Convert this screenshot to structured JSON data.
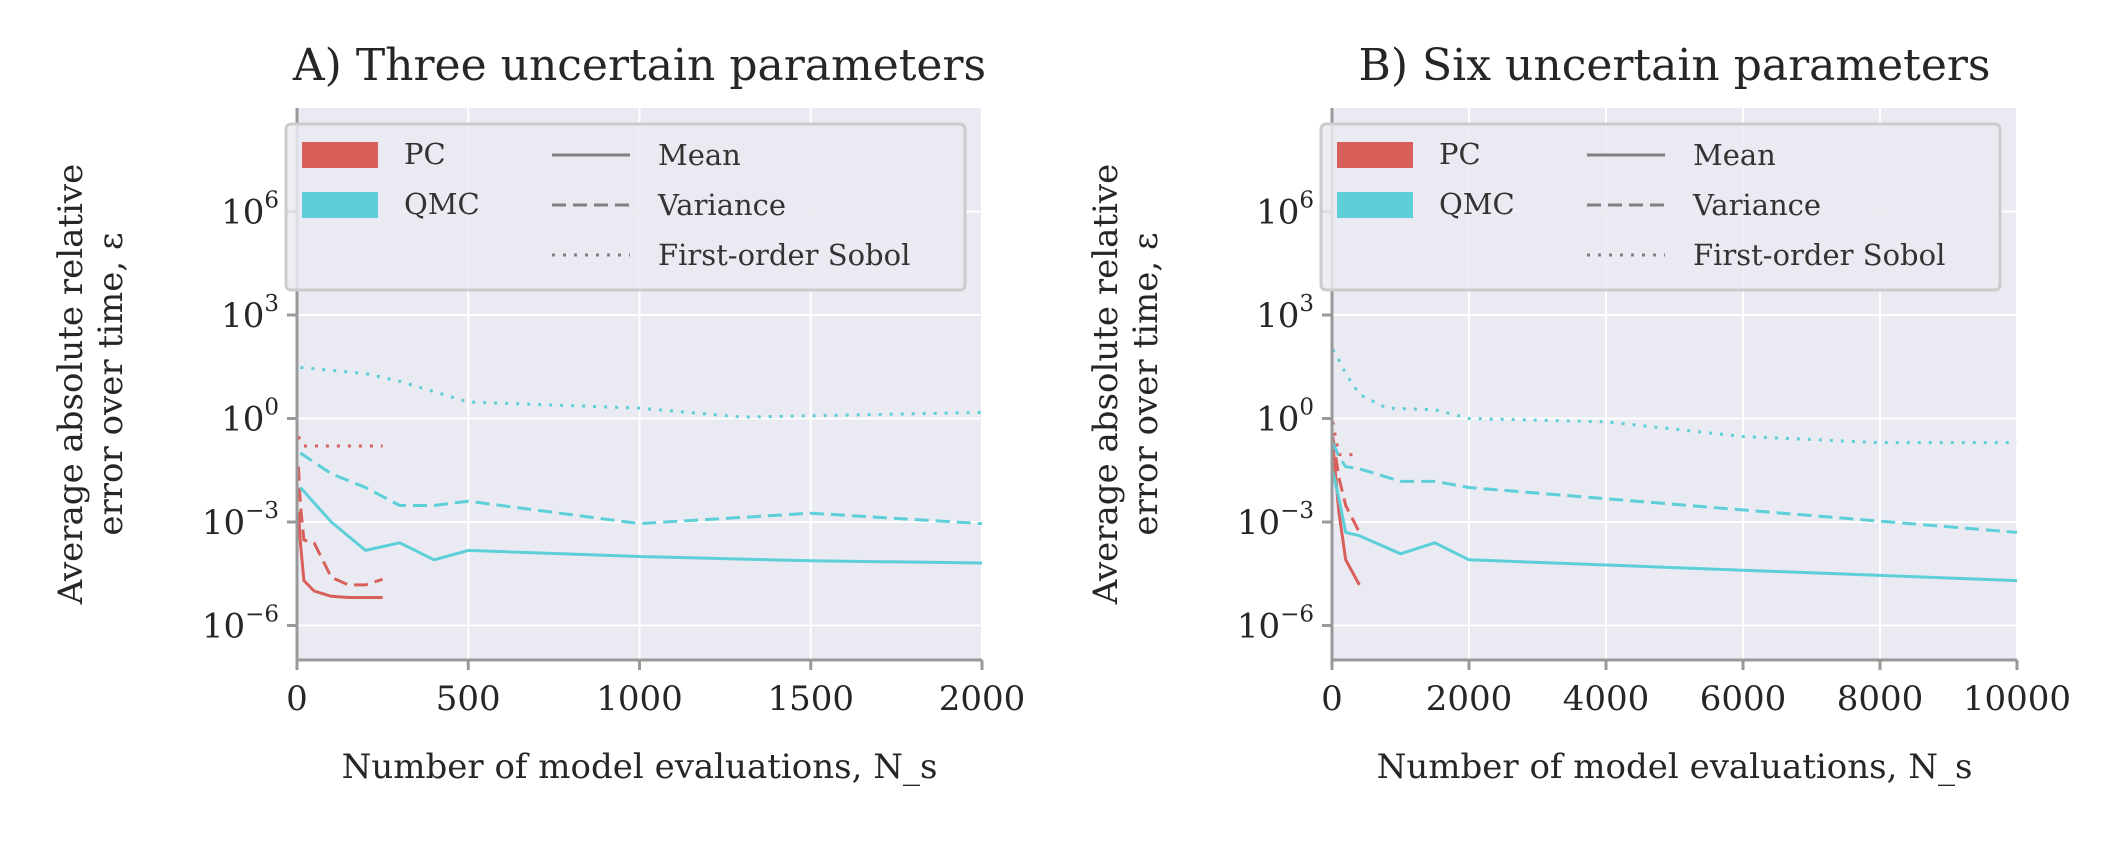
{
  "colors": {
    "PC": "#d9605a",
    "QMC": "#5ccfd8",
    "plot_bg": "#eaeaf2",
    "grid": "#ffffff",
    "spine": "#999999",
    "legend_gray": "#808080"
  },
  "chart_data": [
    {
      "type": "line",
      "title": "A) Three uncertain parameters",
      "xlabel": "Number of model evaluations, N_s",
      "ylabel_lines": [
        "Average absolute relative",
        "error over time, ε"
      ],
      "xscale": "linear",
      "yscale": "log",
      "xlim": [
        0,
        2000
      ],
      "ylim": [
        1e-07,
        1000000000.0
      ],
      "xticks": [
        0,
        500,
        1000,
        1500,
        2000
      ],
      "xtick_labels": [
        "0",
        "500",
        "1000",
        "1500",
        "2000"
      ],
      "yticks": [
        1e-06,
        0.001,
        1.0,
        1000.0,
        1000000.0
      ],
      "ytick_base": "10",
      "ytick_exponents": [
        "−6",
        "−3",
        "0",
        "3",
        "6"
      ],
      "grid": true,
      "legend": {
        "position": "upper-left",
        "methods": [
          "PC",
          "QMC"
        ],
        "statistics": [
          {
            "label": "Mean",
            "dash": "solid"
          },
          {
            "label": "Variance",
            "dash": "dashed"
          },
          {
            "label": "First-order Sobol",
            "dash": "dotted"
          }
        ]
      },
      "series": [
        {
          "method": "PC",
          "statistic": "Mean",
          "x": [
            4,
            10,
            20,
            50,
            100,
            150,
            250
          ],
          "y": [
            0.002,
            0.00025,
            2e-05,
            1e-05,
            7e-06,
            6.5e-06,
            6.5e-06
          ]
        },
        {
          "method": "PC",
          "statistic": "Variance",
          "x": [
            4,
            10,
            20,
            50,
            100,
            150,
            200,
            250
          ],
          "y": [
            0.04,
            0.003,
            0.0003,
            0.00025,
            2.5e-05,
            1.5e-05,
            1.5e-05,
            2.2e-05
          ]
        },
        {
          "method": "PC",
          "statistic": "First-order Sobol",
          "x": [
            4,
            20,
            50,
            100,
            250
          ],
          "y": [
            0.3,
            0.16,
            0.16,
            0.16,
            0.16
          ]
        },
        {
          "method": "QMC",
          "statistic": "Mean",
          "x": [
            10,
            100,
            200,
            300,
            400,
            500,
            1000,
            1500,
            2000
          ],
          "y": [
            0.01,
            0.001,
            0.00015,
            0.00025,
            8e-05,
            0.00015,
            0.0001,
            7.5e-05,
            6.5e-05
          ]
        },
        {
          "method": "QMC",
          "statistic": "Variance",
          "x": [
            10,
            100,
            200,
            300,
            400,
            500,
            1000,
            1500,
            2000
          ],
          "y": [
            0.1,
            0.025,
            0.01,
            0.003,
            0.003,
            0.004,
            0.0009,
            0.0018,
            0.0009
          ]
        },
        {
          "method": "QMC",
          "statistic": "First-order Sobol",
          "x": [
            10,
            100,
            200,
            300,
            400,
            500,
            1000,
            1300,
            1500,
            2000
          ],
          "y": [
            30,
            25,
            20,
            12,
            6,
            3,
            2,
            1.1,
            1.2,
            1.5
          ]
        }
      ]
    },
    {
      "type": "line",
      "title": "B) Six uncertain parameters",
      "xlabel": "Number of model evaluations, N_s",
      "ylabel_lines": [
        "Average absolute relative",
        "error over time, ε"
      ],
      "xscale": "linear",
      "yscale": "log",
      "xlim": [
        0,
        10000
      ],
      "ylim": [
        1e-07,
        1000000000.0
      ],
      "xticks": [
        0,
        2000,
        4000,
        6000,
        8000,
        10000
      ],
      "xtick_labels": [
        "0",
        "2000",
        "4000",
        "6000",
        "8000",
        "10000"
      ],
      "yticks": [
        1e-06,
        0.001,
        1.0,
        1000.0,
        1000000.0
      ],
      "ytick_base": "10",
      "ytick_exponents": [
        "−6",
        "−3",
        "0",
        "3",
        "6"
      ],
      "grid": true,
      "legend": {
        "position": "upper-left",
        "methods": [
          "PC",
          "QMC"
        ],
        "statistics": [
          {
            "label": "Mean",
            "dash": "solid"
          },
          {
            "label": "Variance",
            "dash": "dashed"
          },
          {
            "label": "First-order Sobol",
            "dash": "dotted"
          }
        ]
      },
      "series": [
        {
          "method": "PC",
          "statistic": "Mean",
          "x": [
            10,
            100,
            200,
            400
          ],
          "y": [
            0.2,
            0.002,
            8e-05,
            1.5e-05
          ]
        },
        {
          "method": "PC",
          "statistic": "Variance",
          "x": [
            10,
            100,
            200,
            400
          ],
          "y": [
            0.3,
            0.02,
            0.003,
            0.0005
          ]
        },
        {
          "method": "PC",
          "statistic": "First-order Sobol",
          "x": [
            10,
            100,
            200,
            400
          ],
          "y": [
            0.8,
            0.09,
            0.09,
            0.09
          ]
        },
        {
          "method": "QMC",
          "statistic": "Mean",
          "x": [
            10,
            100,
            200,
            400,
            1000,
            1500,
            2000,
            10000
          ],
          "y": [
            0.03,
            0.005,
            0.0005,
            0.0004,
            0.00012,
            0.00025,
            8e-05,
            2e-05
          ]
        },
        {
          "method": "QMC",
          "statistic": "Variance",
          "x": [
            10,
            100,
            200,
            400,
            1000,
            1500,
            2000,
            10000
          ],
          "y": [
            0.2,
            0.08,
            0.04,
            0.035,
            0.015,
            0.015,
            0.01,
            0.0005
          ]
        },
        {
          "method": "QMC",
          "statistic": "First-order Sobol",
          "x": [
            10,
            100,
            200,
            400,
            800,
            1500,
            2000,
            4000,
            6000,
            8000,
            10000
          ],
          "y": [
            100,
            50,
            20,
            5,
            2,
            1.8,
            1,
            0.8,
            0.3,
            0.2,
            0.2
          ]
        }
      ]
    }
  ]
}
